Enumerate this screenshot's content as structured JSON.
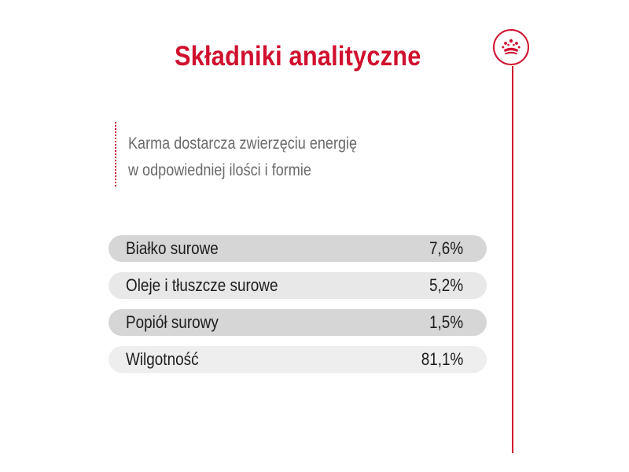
{
  "header": {
    "title": "Składniki analityczne"
  },
  "intro": {
    "line1": "Karma dostarcza zwierzęciu energię",
    "line2": "w odpowiedniej ilości i formie"
  },
  "nutrients": [
    {
      "label": "Białko surowe",
      "value": "7,6%"
    },
    {
      "label": "Oleje i tłuszcze surowe",
      "value": "5,2%"
    },
    {
      "label": "Popiół surowy",
      "value": "1,5%"
    },
    {
      "label": "Wilgotność",
      "value": "81,1%"
    }
  ],
  "brand": {
    "icon": "crown-icon",
    "accent_color": "#d0102e"
  }
}
